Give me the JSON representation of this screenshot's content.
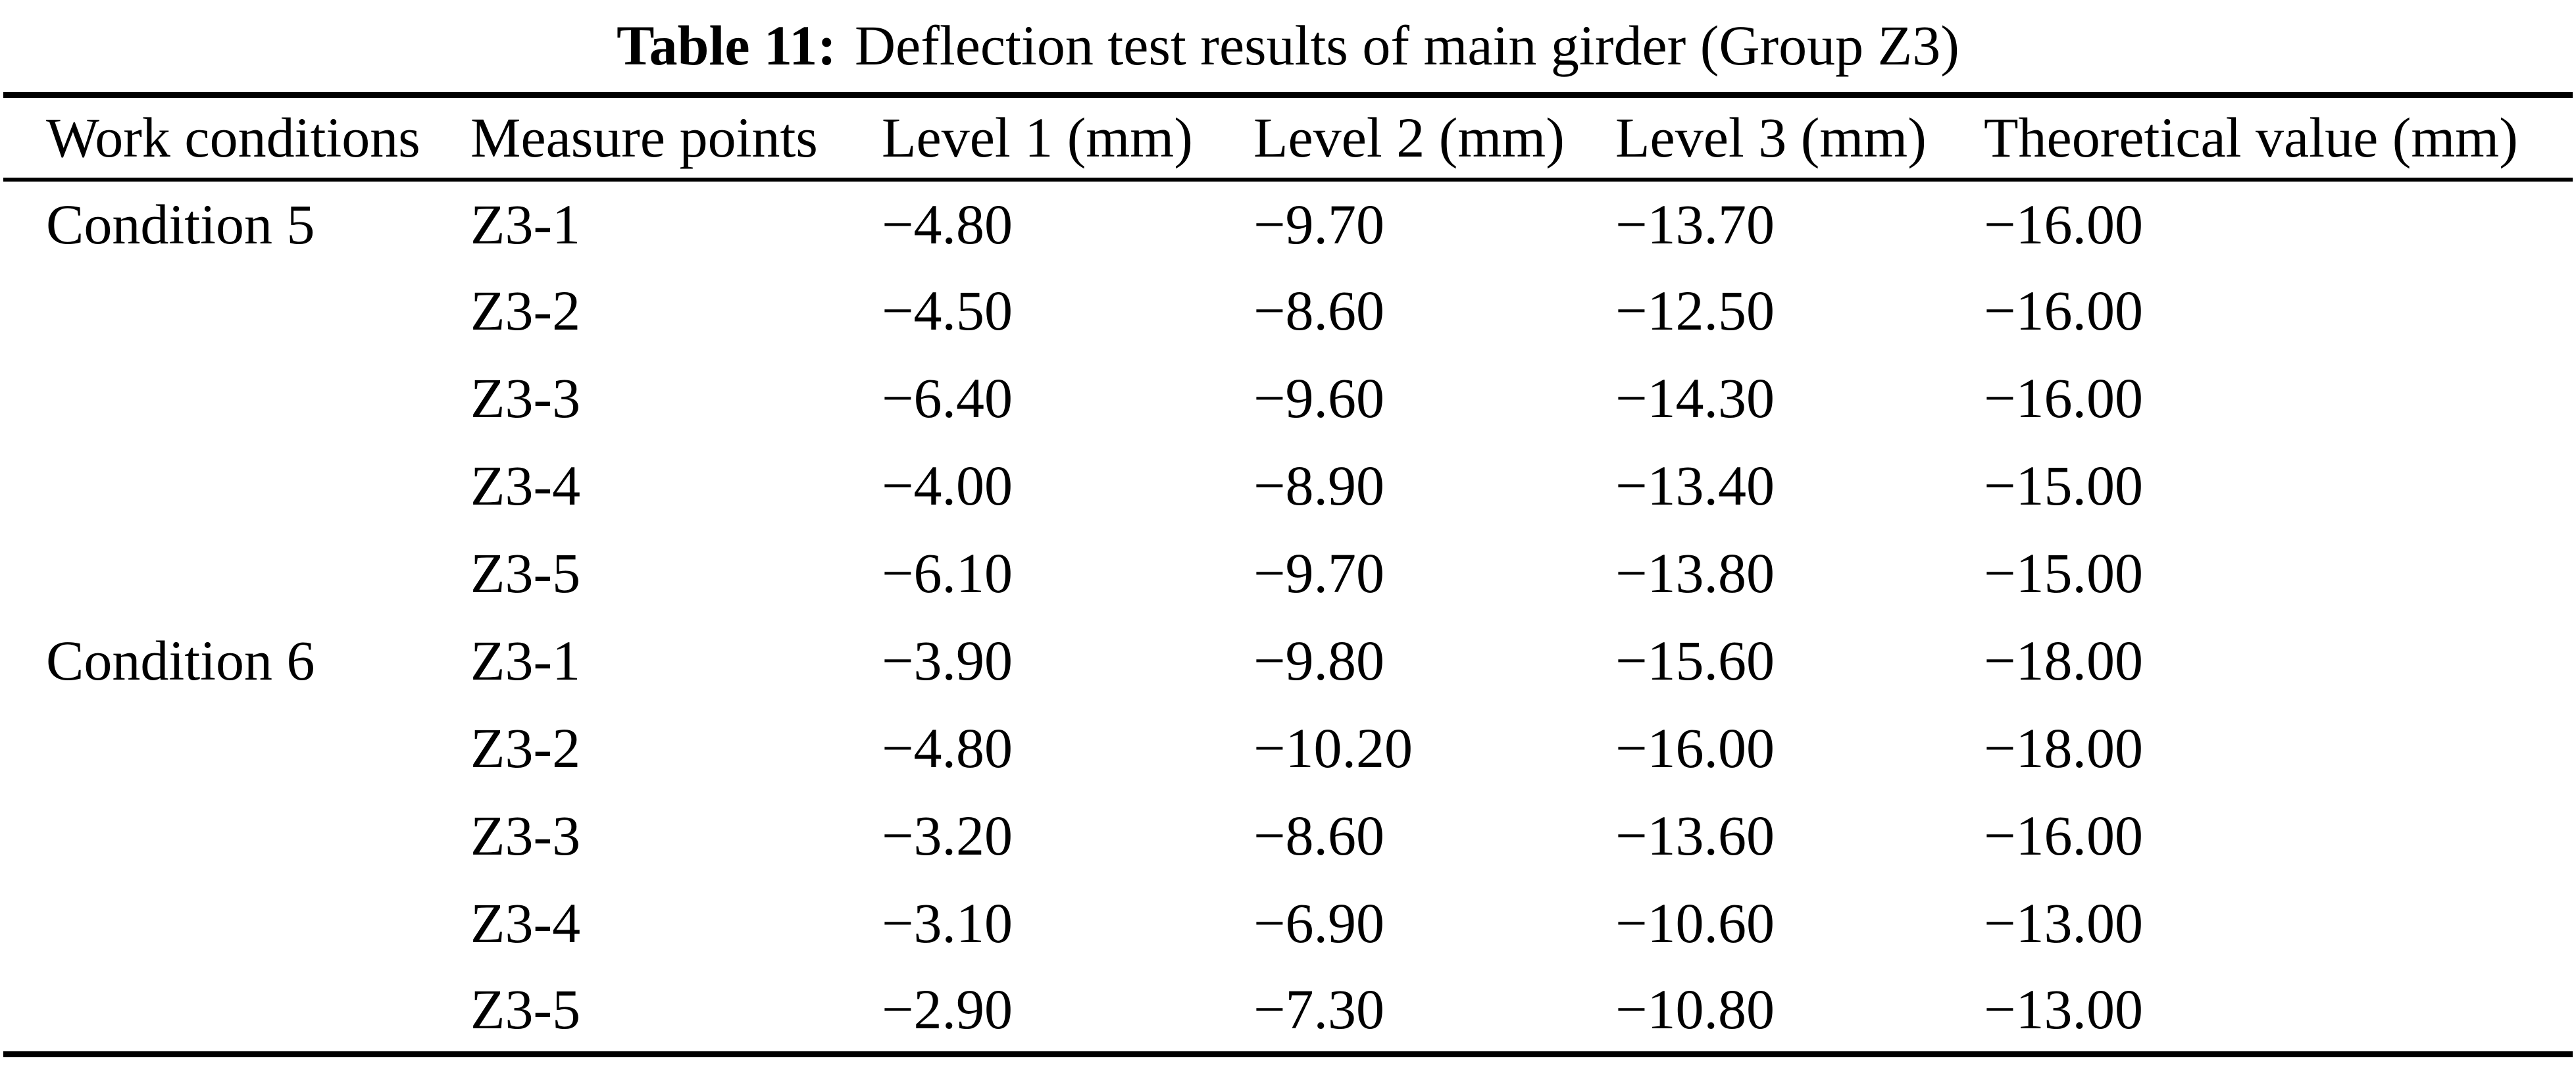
{
  "title": {
    "prefix": "Table 11:",
    "text": "Deflection test results of main girder (Group Z3)"
  },
  "table": {
    "headers": {
      "work_conditions": "Work conditions",
      "measure_points": "Measure points",
      "level1": "Level 1 (mm)",
      "level2": "Level 2 (mm)",
      "level3": "Level 3 (mm)",
      "theoretical": "Theoretical value (mm)"
    },
    "rows": [
      {
        "condition": "Condition 5",
        "point": "Z3-1",
        "level1": "−4.80",
        "level2": "−9.70",
        "level3": "−13.70",
        "theoretical": "−16.00"
      },
      {
        "condition": "",
        "point": "Z3-2",
        "level1": "−4.50",
        "level2": "−8.60",
        "level3": "−12.50",
        "theoretical": "−16.00"
      },
      {
        "condition": "",
        "point": "Z3-3",
        "level1": "−6.40",
        "level2": "−9.60",
        "level3": "−14.30",
        "theoretical": "−16.00"
      },
      {
        "condition": "",
        "point": "Z3-4",
        "level1": "−4.00",
        "level2": "−8.90",
        "level3": "−13.40",
        "theoretical": "−15.00"
      },
      {
        "condition": "",
        "point": "Z3-5",
        "level1": "−6.10",
        "level2": "−9.70",
        "level3": "−13.80",
        "theoretical": "−15.00"
      },
      {
        "condition": "Condition 6",
        "point": "Z3-1",
        "level1": "−3.90",
        "level2": "−9.80",
        "level3": "−15.60",
        "theoretical": "−18.00"
      },
      {
        "condition": "",
        "point": "Z3-2",
        "level1": "−4.80",
        "level2": "−10.20",
        "level3": "−16.00",
        "theoretical": "−18.00"
      },
      {
        "condition": "",
        "point": "Z3-3",
        "level1": "−3.20",
        "level2": "−8.60",
        "level3": "−13.60",
        "theoretical": "−16.00"
      },
      {
        "condition": "",
        "point": "Z3-4",
        "level1": "−3.10",
        "level2": "−6.90",
        "level3": "−10.60",
        "theoretical": "−13.00"
      },
      {
        "condition": "",
        "point": "Z3-5",
        "level1": "−2.90",
        "level2": "−7.30",
        "level3": "−10.80",
        "theoretical": "−13.00"
      }
    ]
  },
  "colors": {
    "background": "#ffffff",
    "text": "#000000",
    "rule": "#000000"
  }
}
